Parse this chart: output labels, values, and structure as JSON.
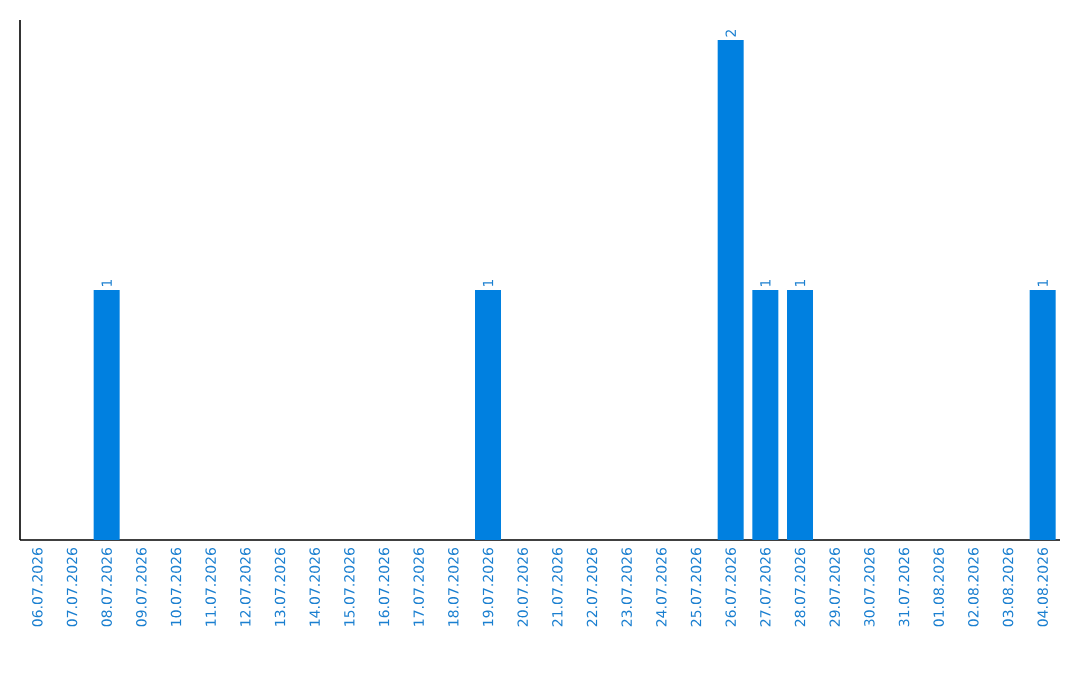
{
  "chart_data": {
    "type": "bar",
    "categories": [
      "06.07.2026",
      "07.07.2026",
      "08.07.2026",
      "09.07.2026",
      "10.07.2026",
      "11.07.2026",
      "12.07.2026",
      "13.07.2026",
      "14.07.2026",
      "15.07.2026",
      "16.07.2026",
      "17.07.2026",
      "18.07.2026",
      "19.07.2026",
      "20.07.2026",
      "21.07.2026",
      "22.07.2026",
      "23.07.2026",
      "24.07.2026",
      "25.07.2026",
      "26.07.2026",
      "27.07.2026",
      "28.07.2026",
      "29.07.2026",
      "30.07.2026",
      "31.07.2026",
      "01.08.2026",
      "02.08.2026",
      "03.08.2026",
      "04.08.2026"
    ],
    "values": [
      0,
      0,
      1,
      0,
      0,
      0,
      0,
      0,
      0,
      0,
      0,
      0,
      0,
      1,
      0,
      0,
      0,
      0,
      0,
      0,
      2,
      1,
      1,
      0,
      0,
      0,
      0,
      0,
      0,
      1
    ],
    "value_labels": [
      null,
      null,
      "1",
      null,
      null,
      null,
      null,
      null,
      null,
      null,
      null,
      null,
      null,
      "1",
      null,
      null,
      null,
      null,
      null,
      null,
      "2",
      "1",
      "1",
      null,
      null,
      null,
      null,
      null,
      null,
      "1"
    ],
    "color": "#0080e0"
  }
}
